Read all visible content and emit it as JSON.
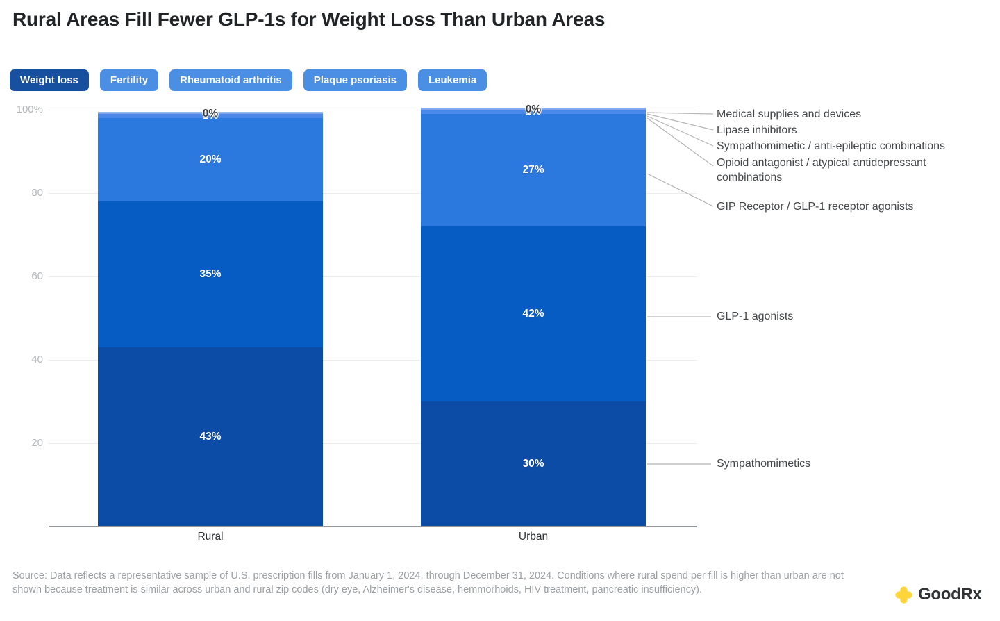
{
  "title": "Rural Areas Fill Fewer GLP-1s for Weight Loss Than Urban Areas",
  "tabs": {
    "items": [
      {
        "label": "Weight loss",
        "selected": true
      },
      {
        "label": "Fertility",
        "selected": false
      },
      {
        "label": "Rheumatoid arthritis",
        "selected": false
      },
      {
        "label": "Plaque psoriasis",
        "selected": false
      },
      {
        "label": "Leukemia",
        "selected": false
      }
    ],
    "selected_bg": "#17509E",
    "unselected_bg": "#4A8FE3"
  },
  "chart_data": {
    "type": "bar",
    "variant": "stacked-percent",
    "categories": [
      "Rural",
      "Urban"
    ],
    "ylim": [
      0,
      100
    ],
    "grid": true,
    "legend_position": "right-annotations",
    "yticks": [
      {
        "label": "100%",
        "value": 100
      },
      {
        "label": "80",
        "value": 80
      },
      {
        "label": "60",
        "value": 60
      },
      {
        "label": "40",
        "value": 40
      },
      {
        "label": "20",
        "value": 20
      }
    ],
    "series": [
      {
        "name": "Sympathomimetics",
        "color": "#0C4CA6",
        "values": [
          43,
          30
        ],
        "labels": [
          "43%",
          "30%"
        ]
      },
      {
        "name": "GLP-1 agonists",
        "color": "#075CC4",
        "values": [
          35,
          42
        ],
        "labels": [
          "35%",
          "42%"
        ]
      },
      {
        "name": "GIP Receptor / GLP-1 receptor agonists",
        "color": "#2B79DF",
        "values": [
          20,
          27
        ],
        "labels": [
          "20%",
          "27%"
        ]
      },
      {
        "name": "Opioid antagonist / atypical antidepressant combinations",
        "color": "#4C88E9",
        "values": [
          1,
          1
        ],
        "labels": [
          "1%",
          "1%"
        ]
      },
      {
        "name": "Sympathomimetic / anti-epileptic combinations",
        "color": "#7BA4EF",
        "values": [
          0,
          0
        ],
        "labels": null
      },
      {
        "name": "Lipase inhibitors",
        "color": "#88ADF1",
        "values": [
          0,
          0
        ],
        "labels": null
      },
      {
        "name": "Medical supplies and devices",
        "color": "#97B8F3",
        "values": [
          0,
          0
        ],
        "labels": null
      }
    ],
    "zero_labels": [
      "0%",
      "0%"
    ]
  },
  "annotations": [
    {
      "label": "Medical supplies and devices"
    },
    {
      "label": "Lipase inhibitors"
    },
    {
      "label": "Sympathomimetic / anti-epileptic combinations"
    },
    {
      "label": "Opioid antagonist / atypical antidepressant combinations"
    },
    {
      "label": "GIP Receptor / GLP-1 receptor agonists"
    },
    {
      "label": "GLP-1 agonists"
    },
    {
      "label": "Sympathomimetics"
    }
  ],
  "source": "Source: Data reflects a representative sample of U.S. prescription fills from January 1, 2024, through December 31, 2024. Conditions where rural spend per fill is higher than urban are not shown because treatment is similar across urban and rural zip codes (dry eye, Alzheimer's disease, hemmorhoids, HIV treatment, pancreatic insufficiency).",
  "logo": {
    "brand": "GoodRx",
    "accent": "#FFD53C"
  }
}
